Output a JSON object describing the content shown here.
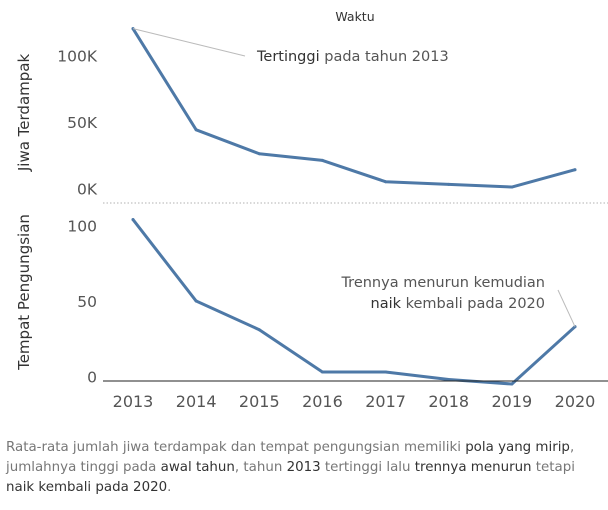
{
  "chart_data": {
    "type": "line",
    "title": "Waktu",
    "categories": [
      "2013",
      "2014",
      "2015",
      "2016",
      "2017",
      "2018",
      "2019",
      "2020"
    ],
    "panels": [
      {
        "ylabel": "Jiwa Terdampak",
        "yticks": [
          "100K",
          "50K",
          "0K"
        ],
        "ytick_values": [
          100000,
          50000,
          0
        ],
        "ylim": [
          -11000,
          125000
        ],
        "values": [
          120000,
          44000,
          26000,
          21000,
          5000,
          3000,
          1000,
          14000
        ],
        "annotation": {
          "text_bold": "Tertinggi",
          "text_rest": " pada tahun 2013",
          "target_index": 0
        }
      },
      {
        "ylabel": "Tempat Pengungsian",
        "yticks": [
          "100",
          "50",
          "0"
        ],
        "ytick_values": [
          100,
          50,
          0
        ],
        "ylim": [
          -3,
          115
        ],
        "values": [
          104,
          50,
          31,
          3,
          3,
          -2,
          -5,
          33
        ],
        "annotation": {
          "line1": "Trennya menurun kemudian",
          "line2_bold": "naik",
          "line2_rest": " kembali pada 2020",
          "target_index": 7
        }
      }
    ],
    "line_color": "#4e79a7"
  },
  "caption": {
    "p1": "Rata-rata jumlah jiwa terdampak dan tempat pengungsian memiliki ",
    "b1": "pola yang mirip",
    "p2": ", jumlahnya tinggi pada ",
    "b2": "awal tahun",
    "p3": ", tahun ",
    "b3": "2013",
    "p4": " tertinggi lalu ",
    "b4": "trennya menurun",
    "p5": " tetapi ",
    "b5": "naik kembali pada 2020",
    "p6": "."
  }
}
